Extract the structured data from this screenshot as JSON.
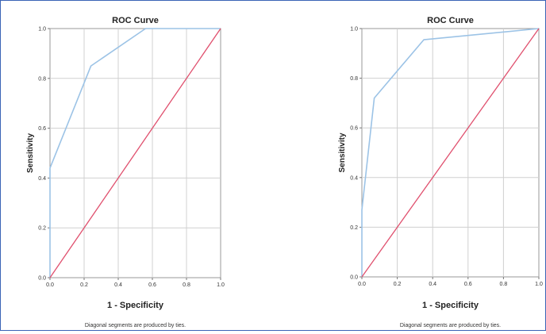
{
  "chart_data": [
    {
      "type": "line",
      "title": "ROC Curve",
      "xlabel": "1 - Specificity",
      "ylabel": "Sensitivity",
      "footnote": "Diagonal segments are produced by ties.",
      "xlim": [
        0,
        1
      ],
      "ylim": [
        0,
        1
      ],
      "xticks": [
        "0.0",
        "0.2",
        "0.4",
        "0.6",
        "0.8",
        "1.0"
      ],
      "yticks": [
        "0.0",
        "0.2",
        "0.4",
        "0.6",
        "0.8",
        "1.0"
      ],
      "grid": true,
      "series": [
        {
          "color": "#9cc3e6",
          "points": [
            [
              0,
              0
            ],
            [
              0,
              0.44
            ],
            [
              0.24,
              0.85
            ],
            [
              0.56,
              1.0
            ],
            [
              1,
              1.0
            ]
          ]
        },
        {
          "color": "#e0506e",
          "points": [
            [
              0,
              0
            ],
            [
              1,
              1
            ]
          ]
        }
      ]
    },
    {
      "type": "line",
      "title": "ROC Curve",
      "xlabel": "1 - Specificity",
      "ylabel": "Sensitivity",
      "footnote": "Diagonal segments are produced by ties.",
      "xlim": [
        0,
        1
      ],
      "ylim": [
        0,
        1
      ],
      "xticks": [
        "0.0",
        "0.2",
        "0.4",
        "0.6",
        "0.8",
        "1.0"
      ],
      "yticks": [
        "0.0",
        "0.2",
        "0.4",
        "0.6",
        "0.8",
        "1.0"
      ],
      "grid": true,
      "series": [
        {
          "color": "#9cc3e6",
          "points": [
            [
              0,
              0
            ],
            [
              0,
              0.27
            ],
            [
              0.07,
              0.72
            ],
            [
              0.35,
              0.955
            ],
            [
              1,
              1.0
            ]
          ]
        },
        {
          "color": "#e0506e",
          "points": [
            [
              0,
              0
            ],
            [
              1,
              1
            ]
          ]
        }
      ]
    }
  ]
}
